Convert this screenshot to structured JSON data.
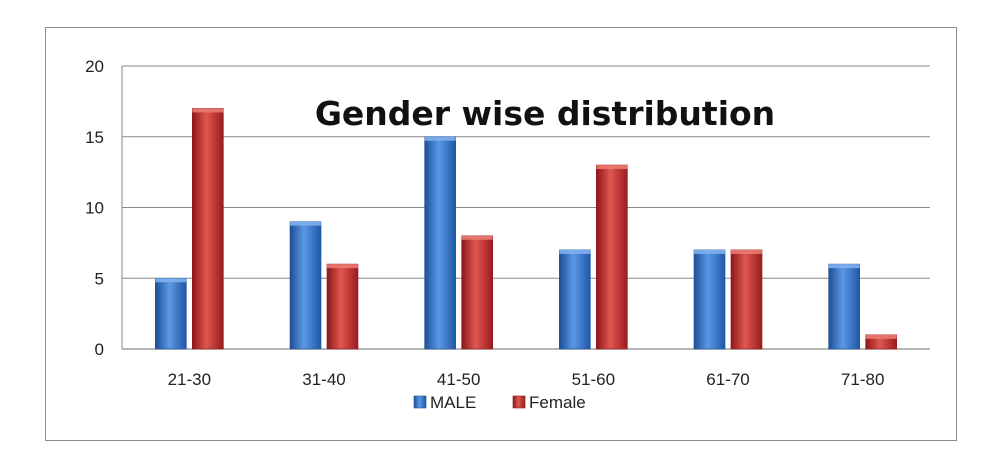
{
  "chart_data": {
    "type": "bar",
    "title": "Gender wise distribution",
    "categories": [
      "21-30",
      "31-40",
      "41-50",
      "51-60",
      "61-70",
      "71-80"
    ],
    "series": [
      {
        "name": "MALE",
        "values": [
          5,
          9,
          15,
          7,
          7,
          6
        ],
        "color": "#2e6fc4"
      },
      {
        "name": "Female",
        "values": [
          17,
          6,
          8,
          13,
          7,
          1
        ],
        "color": "#c0282a"
      }
    ],
    "yticks": [
      0,
      5,
      10,
      15,
      20
    ],
    "ylim": [
      0,
      20
    ],
    "grid": true,
    "legend_position": "bottom",
    "xlabel": "",
    "ylabel": ""
  }
}
